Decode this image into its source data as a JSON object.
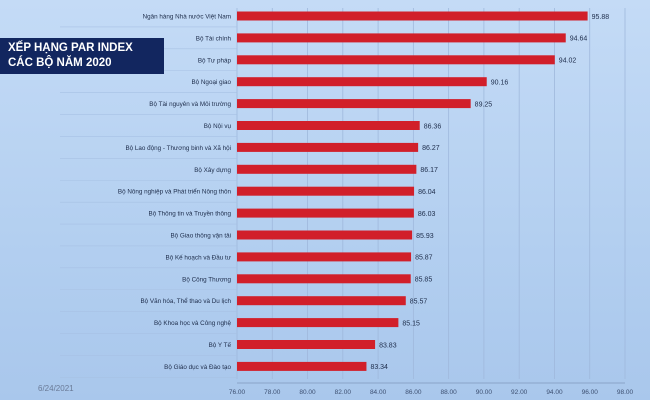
{
  "title": {
    "line1": "XẾP HẠNG PAR INDEX",
    "line2": "CÁC BỘ NĂM 2020"
  },
  "date_stamp": "6/24/2021",
  "colors": {
    "bar": "#d11f2a",
    "title_bg": "#12265f",
    "grid": "#9fb8dc"
  },
  "chart_data": {
    "type": "bar",
    "orientation": "horizontal",
    "title": "XẾP HẠNG PAR INDEX CÁC BỘ NĂM 2020",
    "xlim": [
      76,
      98
    ],
    "x_ticks": [
      "76.00",
      "78.00",
      "80.00",
      "82.00",
      "84.00",
      "86.00",
      "88.00",
      "90.00",
      "92.00",
      "94.00",
      "96.00",
      "98.00"
    ],
    "grid": true,
    "categories": [
      "Ngân hàng Nhà nước Việt Nam",
      "Bộ Tài chính",
      "Bộ Tư pháp",
      "Bộ Ngoại giao",
      "Bộ Tài nguyên và Môi trường",
      "Bộ Nội vụ",
      "Bộ Lao động - Thương binh và Xã hội",
      "Bộ Xây dựng",
      "Bộ Nông nghiệp và Phát triển Nông thôn",
      "Bộ Thông tin và Truyền thông",
      "Bộ Giao thông vận tải",
      "Bộ Kế hoạch và Đầu tư",
      "Bộ Công Thương",
      "Bộ Văn hóa, Thể thao và Du lịch",
      "Bộ Khoa học và Công nghệ",
      "Bộ Y Tế",
      "Bộ Giáo dục và Đào tạo"
    ],
    "values": [
      95.88,
      94.64,
      94.02,
      90.16,
      89.25,
      86.36,
      86.27,
      86.17,
      86.04,
      86.03,
      85.93,
      85.87,
      85.85,
      85.57,
      85.15,
      83.83,
      83.34
    ],
    "value_labels": [
      "95.88",
      "94.64",
      "94.02",
      "90.16",
      "89.25",
      "86.36",
      "86.27",
      "86.17",
      "86.04",
      "86.03",
      "85.93",
      "85.87",
      "85.85",
      "85.57",
      "85.15",
      "83.83",
      "83.34"
    ]
  }
}
